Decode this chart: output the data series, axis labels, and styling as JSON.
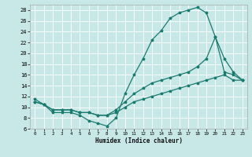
{
  "xlabel": "Humidex (Indice chaleur)",
  "bg_color": "#c8e8e8",
  "grid_color": "#ffffff",
  "line_color": "#1a7a6e",
  "xlim": [
    -0.5,
    23.5
  ],
  "ylim": [
    6,
    29
  ],
  "yticks": [
    6,
    8,
    10,
    12,
    14,
    16,
    18,
    20,
    22,
    24,
    26,
    28
  ],
  "xticks": [
    0,
    1,
    2,
    3,
    4,
    5,
    6,
    7,
    8,
    9,
    10,
    11,
    12,
    13,
    14,
    15,
    16,
    17,
    18,
    19,
    20,
    21,
    22,
    23
  ],
  "curve1_x": [
    0,
    1,
    2,
    3,
    4,
    5,
    6,
    7,
    8,
    9,
    10,
    11,
    12,
    13,
    14,
    15,
    16,
    17,
    18,
    19,
    20,
    21,
    22,
    23
  ],
  "curve1_y": [
    11.5,
    10.5,
    9.0,
    9.0,
    9.0,
    8.5,
    7.5,
    7.0,
    6.5,
    8.0,
    12.5,
    16.0,
    19.0,
    22.5,
    24.2,
    26.5,
    27.5,
    28.0,
    28.5,
    27.5,
    23.0,
    16.5,
    16.0,
    15.0
  ],
  "curve2_x": [
    0,
    1,
    2,
    3,
    4,
    5,
    6,
    7,
    8,
    9,
    10,
    11,
    12,
    13,
    14,
    15,
    16,
    17,
    18,
    19,
    20,
    21,
    22,
    23
  ],
  "curve2_y": [
    11.0,
    10.5,
    9.5,
    9.5,
    9.5,
    9.0,
    9.0,
    8.5,
    8.5,
    9.5,
    11.0,
    12.5,
    13.5,
    14.5,
    15.0,
    15.5,
    16.0,
    16.5,
    17.5,
    19.0,
    23.0,
    19.0,
    16.5,
    15.0
  ],
  "curve3_x": [
    0,
    1,
    2,
    3,
    4,
    5,
    6,
    7,
    8,
    9,
    10,
    11,
    12,
    13,
    14,
    15,
    16,
    17,
    18,
    19,
    20,
    21,
    22,
    23
  ],
  "curve3_y": [
    11.0,
    10.5,
    9.5,
    9.5,
    9.5,
    9.0,
    9.0,
    8.5,
    8.5,
    9.0,
    10.0,
    11.0,
    11.5,
    12.0,
    12.5,
    13.0,
    13.5,
    14.0,
    14.5,
    15.0,
    15.5,
    16.0,
    15.0,
    15.0
  ]
}
